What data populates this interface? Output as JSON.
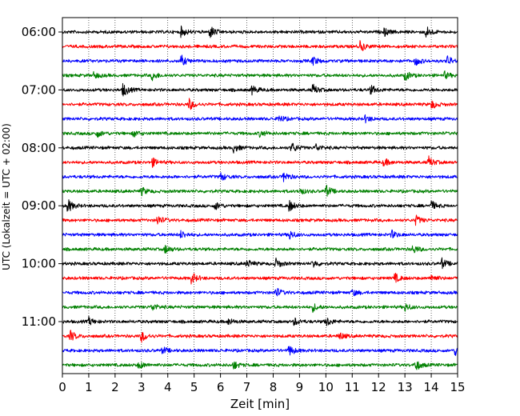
{
  "chart_data": {
    "type": "helicorder",
    "xlabel": "Zeit  [min]",
    "ylabel": "UTC (Lokalzeit = UTC + 02:00)",
    "xlim": [
      0,
      15
    ],
    "x_ticks": [
      "0",
      "1",
      "2",
      "3",
      "4",
      "5",
      "6",
      "7",
      "8",
      "9",
      "10",
      "11",
      "12",
      "13",
      "14",
      "15"
    ],
    "y_tick_labels": [
      "06:00",
      "07:00",
      "08:00",
      "09:00",
      "10:00",
      "11:00"
    ],
    "start_time": "06:00",
    "trace_interval_min": 15,
    "trace_count": 24,
    "trace_colors": [
      "#000000",
      "#ff0000",
      "#0000ff",
      "#008000"
    ],
    "grid": "vertical dotted at each minute",
    "traces": [
      {
        "time": "06:00",
        "color": "#000000",
        "events": [
          [
            4.5,
            1.0
          ],
          [
            5.6,
            1.3
          ],
          [
            12.2,
            0.8
          ],
          [
            13.8,
            1.2
          ]
        ]
      },
      {
        "time": "06:15",
        "color": "#ff0000",
        "events": [
          [
            11.3,
            1.1
          ]
        ]
      },
      {
        "time": "06:30",
        "color": "#0000ff",
        "events": [
          [
            4.5,
            1.1
          ],
          [
            9.5,
            0.9
          ],
          [
            13.4,
            0.9
          ],
          [
            14.6,
            1.0
          ]
        ]
      },
      {
        "time": "06:45",
        "color": "#008000",
        "events": [
          [
            1.2,
            0.7
          ],
          [
            3.4,
            0.9
          ],
          [
            13.0,
            1.0
          ],
          [
            14.5,
            0.7
          ]
        ]
      },
      {
        "time": "07:00",
        "color": "#000000",
        "events": [
          [
            2.3,
            1.4
          ],
          [
            7.2,
            0.9
          ],
          [
            9.5,
            1.1
          ],
          [
            11.7,
            0.9
          ]
        ]
      },
      {
        "time": "07:15",
        "color": "#ff0000",
        "events": [
          [
            4.8,
            1.2
          ],
          [
            14.0,
            0.9
          ]
        ]
      },
      {
        "time": "07:30",
        "color": "#0000ff",
        "events": [
          [
            8.2,
            0.8
          ],
          [
            11.5,
            0.7
          ]
        ]
      },
      {
        "time": "07:45",
        "color": "#008000",
        "events": [
          [
            1.3,
            0.8
          ],
          [
            2.7,
            0.7
          ],
          [
            7.5,
            0.7
          ]
        ]
      },
      {
        "time": "08:00",
        "color": "#000000",
        "events": [
          [
            6.5,
            0.9
          ],
          [
            8.7,
            1.1
          ],
          [
            9.6,
            0.8
          ]
        ]
      },
      {
        "time": "08:15",
        "color": "#ff0000",
        "events": [
          [
            3.4,
            0.9
          ],
          [
            12.2,
            0.8
          ],
          [
            13.9,
            1.1
          ]
        ]
      },
      {
        "time": "08:30",
        "color": "#0000ff",
        "events": [
          [
            6.0,
            0.8
          ],
          [
            8.4,
            1.0
          ]
        ]
      },
      {
        "time": "08:45",
        "color": "#008000",
        "events": [
          [
            3.0,
            0.8
          ],
          [
            9.0,
            0.7
          ],
          [
            10.0,
            1.2
          ]
        ]
      },
      {
        "time": "09:00",
        "color": "#000000",
        "events": [
          [
            0.2,
            1.4
          ],
          [
            5.8,
            0.8
          ],
          [
            8.6,
            1.2
          ],
          [
            14.0,
            0.9
          ]
        ]
      },
      {
        "time": "09:15",
        "color": "#ff0000",
        "events": [
          [
            3.6,
            1.0
          ],
          [
            13.4,
            1.0
          ]
        ]
      },
      {
        "time": "09:30",
        "color": "#0000ff",
        "events": [
          [
            4.5,
            0.8
          ],
          [
            8.6,
            1.0
          ],
          [
            12.5,
            0.8
          ]
        ]
      },
      {
        "time": "09:45",
        "color": "#008000",
        "events": [
          [
            3.9,
            0.9
          ],
          [
            13.3,
            0.9
          ]
        ]
      },
      {
        "time": "10:00",
        "color": "#000000",
        "events": [
          [
            7.0,
            0.8
          ],
          [
            8.1,
            1.0
          ],
          [
            9.5,
            0.8
          ],
          [
            14.4,
            1.0
          ]
        ]
      },
      {
        "time": "10:15",
        "color": "#ff0000",
        "events": [
          [
            4.9,
            1.2
          ],
          [
            12.6,
            1.0
          ],
          [
            14.0,
            0.8
          ]
        ]
      },
      {
        "time": "10:30",
        "color": "#0000ff",
        "events": [
          [
            8.1,
            1.0
          ],
          [
            11.0,
            0.7
          ]
        ]
      },
      {
        "time": "10:45",
        "color": "#008000",
        "events": [
          [
            3.4,
            0.8
          ],
          [
            9.5,
            0.8
          ],
          [
            13.0,
            0.8
          ]
        ]
      },
      {
        "time": "11:00",
        "color": "#000000",
        "events": [
          [
            1.0,
            0.8
          ],
          [
            6.3,
            0.7
          ],
          [
            8.8,
            0.8
          ],
          [
            10.0,
            1.0
          ]
        ]
      },
      {
        "time": "11:15",
        "color": "#ff0000",
        "events": [
          [
            0.3,
            1.1
          ],
          [
            3.0,
            1.2
          ],
          [
            10.5,
            0.8
          ]
        ]
      },
      {
        "time": "11:30",
        "color": "#0000ff",
        "events": [
          [
            3.8,
            0.7
          ],
          [
            8.6,
            1.1
          ],
          [
            14.9,
            0.9
          ]
        ]
      },
      {
        "time": "11:45",
        "color": "#008000",
        "events": [
          [
            2.9,
            0.8
          ],
          [
            6.5,
            0.8
          ],
          [
            13.4,
            1.2
          ]
        ]
      }
    ]
  }
}
